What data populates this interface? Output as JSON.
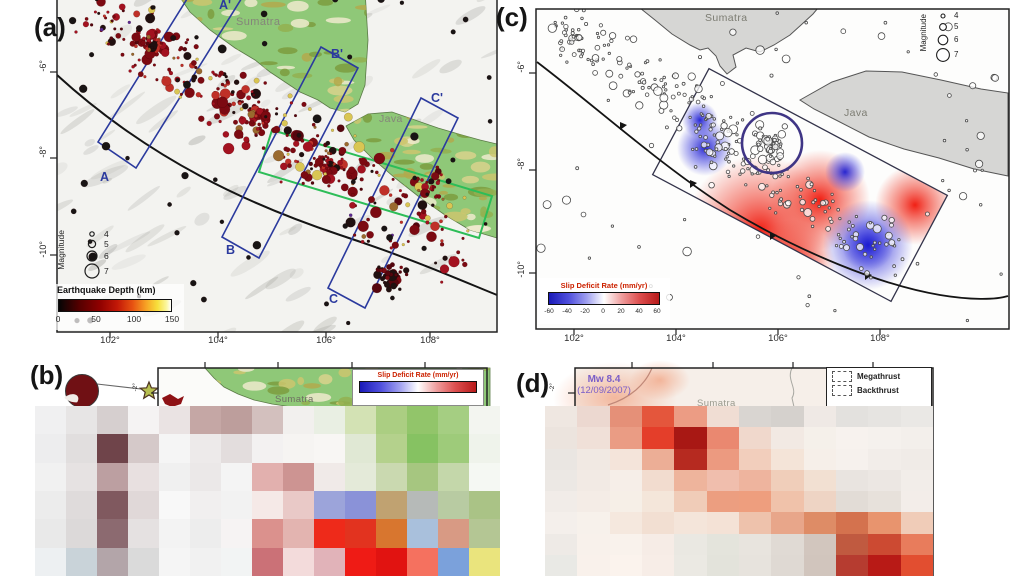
{
  "panels": {
    "a": {
      "label": "(a)",
      "sumatra_label": "Sumatra",
      "java_label": "Java",
      "transects": {
        "A": "A",
        "A2": "A'",
        "B": "B",
        "B2": "B'",
        "C": "C",
        "C2": "C'"
      },
      "magnitude_legend": {
        "title": "Magnitude",
        "sizes": [
          "4",
          "5",
          "6",
          "7"
        ]
      },
      "depth_legend": {
        "title": "Earthquake Depth (km)",
        "ticks": [
          "0",
          "50",
          "100",
          "150"
        ]
      },
      "x_ticks": [
        "102°",
        "104°",
        "106°",
        "108°"
      ],
      "y_ticks": [
        "-6°",
        "-8°",
        "-10°"
      ]
    },
    "b": {
      "label": "(b)",
      "sumatra_label": "Sumatra",
      "colorbar_title": "Slip Deficit Rate (mm/yr)",
      "y_tick": "-2°",
      "mosaic": [
        [
          "#f0f0f1",
          "#e7e5e5",
          "#d6cfcf",
          "#f5f3f3",
          "#eae3e3",
          "#c5a7a5",
          "#bd9e9c",
          "#d3c0be",
          "#f2f0ee",
          "#e9efe3",
          "#d3e2b4",
          "#abce82",
          "#92c56a",
          "#a5ce82",
          "#f3f5f0"
        ],
        [
          "#ededee",
          "#e1dede",
          "#6f444a",
          "#d5c9c9",
          "#f5f5f5",
          "#edeaea",
          "#e3dddd",
          "#f3f1f1",
          "#f6f4f2",
          "#f8f6f4",
          "#e0e8d4",
          "#b4d18c",
          "#86c262",
          "#9ecb7a",
          "#eff3eb"
        ],
        [
          "#f1f1f1",
          "#e6e2e2",
          "#bc9fa1",
          "#e8e0e0",
          "#f0f0f0",
          "#ebe8e8",
          "#f4f4f4",
          "#e2b0ae",
          "#cd9492",
          "#f0eae8",
          "#e4ead9",
          "#cad9b0",
          "#a6c680",
          "#c4d7aa",
          "#f5f8f3"
        ],
        [
          "#ececec",
          "#dfdbdb",
          "#80595f",
          "#e0d8d8",
          "#f8f8f8",
          "#f1efef",
          "#f2f2f2",
          "#f5e9e7",
          "#e9c9c7",
          "#9ca4da",
          "#8a92d8",
          "#c0a271",
          "#b6bab8",
          "#b8cba2",
          "#aac386"
        ],
        [
          "#e9e9e9",
          "#dcd9d9",
          "#8c6a70",
          "#e5e1e1",
          "#f3f3f3",
          "#ededed",
          "#f6f3f3",
          "#db918d",
          "#e3b4b0",
          "#ee2a1a",
          "#e2331f",
          "#d8762f",
          "#a9c0dc",
          "#d89a84",
          "#b4c694"
        ],
        [
          "#edf0f2",
          "#c9d3d9",
          "#b3a5a9",
          "#dadada",
          "#f5f5f5",
          "#f1f1f1",
          "#f2f4f4",
          "#cb7177",
          "#f3dbdb",
          "#e1b3b9",
          "#ef1b15",
          "#e11311",
          "#f5715f",
          "#7ba1db",
          "#eae47d"
        ]
      ]
    },
    "c": {
      "label": "(c)",
      "sumatra_label": "Sumatra",
      "java_label": "Java",
      "magnitude_legend": {
        "title": "Magnitude",
        "sizes": [
          "4",
          "5",
          "6",
          "7"
        ]
      },
      "colorbar": {
        "title": "Slip Deficit Rate (mm/yr)",
        "ticks": [
          "-60",
          "-40",
          "-20",
          "0",
          "20",
          "40",
          "60"
        ]
      },
      "x_ticks": [
        "102°",
        "104°",
        "106°",
        "108°"
      ],
      "y_ticks": [
        "-6°",
        "-8°",
        "-10°"
      ]
    },
    "d": {
      "label": "(d)",
      "event_magnitude": "Mw 8.4",
      "event_date": "(12/09/2007)",
      "sumatra_label": "Sumatra",
      "y_tick": "-2°",
      "legend": {
        "items": [
          "Megathrust",
          "Backthrust"
        ]
      },
      "mosaic": [
        [
          "#efe7e1",
          "#ecd8d0",
          "#e59078",
          "#e4563c",
          "#ec9c84",
          "#f0ddd3",
          "#d9d5d1",
          "#d5d1cd",
          "#efe9e5",
          "#e3e1de",
          "#e6e4e1",
          "#eae8e5"
        ],
        [
          "#ece4de",
          "#f0e0d8",
          "#ea9c84",
          "#e43e2a",
          "#a81814",
          "#ea8870",
          "#f0d8cc",
          "#f2e9e3",
          "#f5f0ea",
          "#f7f2ee",
          "#f5f1ed",
          "#f3efeb"
        ],
        [
          "#eae6e2",
          "#f1e9e3",
          "#f4e4da",
          "#ecae96",
          "#b62a20",
          "#ec9a80",
          "#f2cebc",
          "#f4e4d8",
          "#f6efe9",
          "#f6f1ed",
          "#f2ede9",
          "#f0ebe7"
        ],
        [
          "#ece8e4",
          "#f2eae4",
          "#f6eee8",
          "#f2dccf",
          "#eeb49c",
          "#f0bead",
          "#eeb49e",
          "#f0ceba",
          "#f2e0d2",
          "#e9e4e0",
          "#ece7e3",
          "#f2ede9"
        ],
        [
          "#f1ece8",
          "#f4ece6",
          "#f6efe7",
          "#f4e6da",
          "#f0ccb8",
          "#ec9e80",
          "#ee9e7e",
          "#f0c2aa",
          "#eed4c4",
          "#e2dcd6",
          "#e7e1db",
          "#f3ede9"
        ],
        [
          "#f4efeb",
          "#f7f1eb",
          "#f5e8de",
          "#f2dfd2",
          "#f4e5da",
          "#f4e2d6",
          "#eec2ac",
          "#e8a68a",
          "#de8c66",
          "#d4724e",
          "#e8946e",
          "#f0ccb8"
        ],
        [
          "#eeeae6",
          "#f8f1eb",
          "#f9f2ec",
          "#f6ece6",
          "#eae8e2",
          "#e4e4dc",
          "#e8e4de",
          "#e0dad4",
          "#d2c6be",
          "#c05a40",
          "#cc4a32",
          "#e87c5c"
        ],
        [
          "#e9e9e5",
          "#f9f1eb",
          "#fbf3ed",
          "#f7ede7",
          "#ebe9e3",
          "#e3e3db",
          "#e7e3dd",
          "#dfd9d3",
          "#d1c5bd",
          "#b63c30",
          "#b81a16",
          "#e24e30"
        ]
      ]
    }
  },
  "colors": {
    "land_green": "#8fc878",
    "land_gray": "#d6d6d4",
    "transect_navy": "#2b3a9e",
    "coupling_box_green": "#2dbd58",
    "cluster_circle_purple": "#3f3585",
    "colorbar_title_red": "#cc2200",
    "event_text_purple": "#7a5ec8",
    "quake_palette": {
      "dark_red": "#7c0a12",
      "red": "#a31220",
      "black": "#201010",
      "bright": "#bf3028",
      "deep": "#55060e",
      "brown": "#9a6a2e",
      "yellow": "#d9c653",
      "purple": "#5a2a92"
    },
    "land_tex": [
      "#cdc66e",
      "#b3a94c",
      "#93b050",
      "#efeacc",
      "#7d9c3e",
      "#d9d28c"
    ]
  }
}
